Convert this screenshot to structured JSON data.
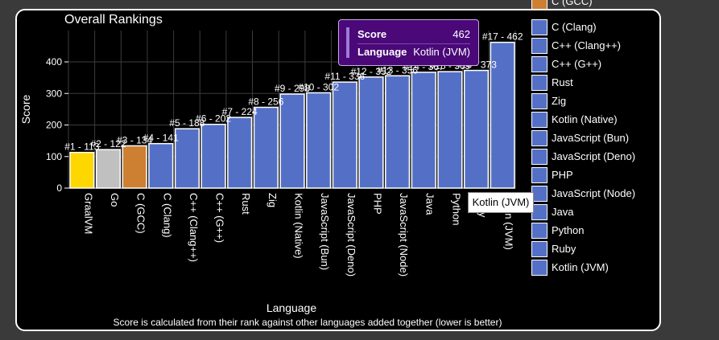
{
  "chart_data": {
    "type": "bar",
    "title": "Overall Rankings",
    "xlabel": "Language",
    "ylabel": "Score",
    "subtitle": "Score is calculated from their rank against other languages added together (lower is better)",
    "ylim": [
      0,
      500
    ],
    "yticks": [
      "0",
      "100",
      "200",
      "300",
      "400"
    ],
    "grid": true,
    "legend_position": "right",
    "categories": [
      "GraalVM",
      "Go",
      "C (GCC)",
      "C (Clang)",
      "C++ (Clang++)",
      "C++ (G++)",
      "Rust",
      "Zig",
      "Kotlin (Native)",
      "JavaScript (Bun)",
      "JavaScript (Deno)",
      "PHP",
      "JavaScript (Node)",
      "Java",
      "Python",
      "Ruby",
      "Kotlin (JVM)"
    ],
    "values": [
      113,
      122,
      134,
      141,
      188,
      202,
      224,
      256,
      298,
      302,
      336,
      352,
      356,
      367,
      369,
      373,
      462
    ],
    "data_labels": [
      "#1 - 113",
      "#2 - 122",
      "#3 - 134",
      "#4 - 141",
      "#5 - 188",
      "#6 - 202",
      "#7 - 224",
      "#8 - 256",
      "#9 - 298",
      "#10 - 302",
      "#11 - 336",
      "#12 - 352",
      "#13 - 356",
      "#14 - 367",
      "#15 - 369",
      "#16 - 373",
      "#17 - 462"
    ],
    "colors": [
      "#ffd700",
      "#c0c0c0",
      "#cd7f32",
      "#5470c6",
      "#5470c6",
      "#5470c6",
      "#5470c6",
      "#5470c6",
      "#5470c6",
      "#5470c6",
      "#5470c6",
      "#5470c6",
      "#5470c6",
      "#5470c6",
      "#5470c6",
      "#5470c6",
      "#5470c6"
    ],
    "legend_entries": [
      "C (GCC)",
      "C (Clang)",
      "C++ (Clang++)",
      "C++ (G++)",
      "Rust",
      "Zig",
      "Kotlin (Native)",
      "JavaScript (Bun)",
      "JavaScript (Deno)",
      "PHP",
      "JavaScript (Node)",
      "Java",
      "Python",
      "Ruby",
      "Kotlin (JVM)"
    ],
    "legend_colors": [
      "#cd7f32",
      "#5470c6",
      "#5470c6",
      "#5470c6",
      "#5470c6",
      "#5470c6",
      "#5470c6",
      "#5470c6",
      "#5470c6",
      "#5470c6",
      "#5470c6",
      "#5470c6",
      "#5470c6",
      "#5470c6",
      "#5470c6"
    ]
  },
  "tooltip": {
    "score_label": "Score",
    "score_value": "462",
    "language_label": "Language",
    "language_value": "Kotlin (JVM)"
  },
  "hover_label": "Kotlin (JVM)"
}
